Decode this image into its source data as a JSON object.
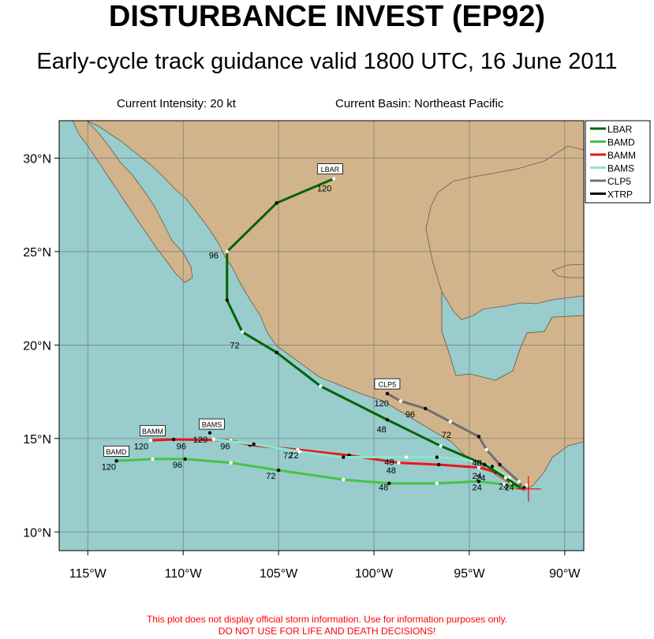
{
  "title": "DISTURBANCE INVEST (EP92)",
  "subtitle": "Early-cycle track guidance valid 1800 UTC, 16 June 2011",
  "intensity_label": "Current Intensity: 20 kt",
  "basin_label": "Current Basin: Northeast Pacific",
  "disclaimer_line1": "This plot does not display official storm information. Use for information purposes only.",
  "disclaimer_line2": "DO NOT USE FOR LIFE AND DEATH DECISIONS!",
  "colors": {
    "ocean": "#99cccc",
    "land": "#d2b48c",
    "LBAR": "#006400",
    "BAMD": "#44c444",
    "BAMM": "#e81818",
    "BAMS": "#88e8cc",
    "CLP5": "#707070",
    "XTRP": "#000000",
    "storm_marker": "#ff0000"
  },
  "map": {
    "lon_range": [
      -116.5,
      -89
    ],
    "lat_range": [
      9,
      32
    ],
    "lon_ticks": [
      {
        "value": -115,
        "label": "115°W"
      },
      {
        "value": -110,
        "label": "110°W"
      },
      {
        "value": -105,
        "label": "105°W"
      },
      {
        "value": -100,
        "label": "100°W"
      },
      {
        "value": -95,
        "label": "95°W"
      },
      {
        "value": -90,
        "label": "90°W"
      }
    ],
    "lat_ticks": [
      {
        "value": 10,
        "label": "10°N"
      },
      {
        "value": 15,
        "label": "15°N"
      },
      {
        "value": 20,
        "label": "20°N"
      },
      {
        "value": 25,
        "label": "25°N"
      },
      {
        "value": 30,
        "label": "30°N"
      }
    ],
    "storm_position": {
      "lon": -91.9,
      "lat": 12.3
    }
  },
  "legend": [
    "LBAR",
    "BAMD",
    "BAMM",
    "BAMS",
    "CLP5",
    "XTRP"
  ],
  "tracks": [
    {
      "name": "BAMD",
      "points": [
        [
          -92.2,
          12.3
        ],
        [
          -93.2,
          12.55
        ],
        [
          -94.5,
          12.7
        ],
        [
          -96.7,
          12.6
        ],
        [
          -99.2,
          12.6
        ],
        [
          -101.6,
          12.8
        ],
        [
          -105.0,
          13.3
        ],
        [
          -107.5,
          13.7
        ],
        [
          -109.9,
          13.9
        ],
        [
          -111.6,
          13.9
        ],
        [
          -113.5,
          13.8
        ]
      ],
      "hour_labels": [
        {
          "text": "24",
          "lon": -94.6,
          "lat": 12.4
        },
        {
          "text": "48",
          "lon": -99.5,
          "lat": 12.4
        },
        {
          "text": "72",
          "lon": -105.4,
          "lat": 13.0
        },
        {
          "text": "96",
          "lon": -110.3,
          "lat": 13.6
        },
        {
          "text": "120",
          "lon": -113.9,
          "lat": 13.5
        }
      ],
      "tag": {
        "text": "BAMD",
        "lon": -113.5,
        "lat": 14.3
      }
    },
    {
      "name": "BAMM",
      "points": [
        [
          -92.2,
          12.3
        ],
        [
          -92.8,
          12.65
        ],
        [
          -93.6,
          13.2
        ],
        [
          -94.5,
          13.45
        ],
        [
          -96.6,
          13.6
        ],
        [
          -98.7,
          13.7
        ],
        [
          -101.3,
          14.1
        ],
        [
          -104.0,
          14.4
        ],
        [
          -106.5,
          14.65
        ],
        [
          -107.5,
          14.9
        ],
        [
          -110.5,
          14.95
        ],
        [
          -111.7,
          14.9
        ]
      ],
      "hour_labels": [
        {
          "text": "24",
          "lon": -94.4,
          "lat": 12.9
        },
        {
          "text": "48",
          "lon": -99.1,
          "lat": 13.3
        },
        {
          "text": "72",
          "lon": -104.5,
          "lat": 14.1
        },
        {
          "text": "96",
          "lon": -110.1,
          "lat": 14.6
        },
        {
          "text": "120",
          "lon": -112.2,
          "lat": 14.6
        }
      ],
      "tag": {
        "text": "BAMM",
        "lon": -111.6,
        "lat": 15.4
      }
    },
    {
      "name": "BAMS",
      "points": [
        [
          -92.2,
          12.3
        ],
        [
          -92.9,
          12.9
        ],
        [
          -93.8,
          13.5
        ],
        [
          -94.9,
          13.85
        ],
        [
          -96.7,
          14.0
        ],
        [
          -98.3,
          14.0
        ],
        [
          -101.6,
          14.0
        ],
        [
          -103.9,
          14.3
        ],
        [
          -106.3,
          14.7
        ],
        [
          -108.4,
          14.95
        ],
        [
          -108.6,
          15.3
        ]
      ],
      "hour_labels": [
        {
          "text": "24",
          "lon": -93.2,
          "lat": 12.45
        },
        {
          "text": "48",
          "lon": -99.2,
          "lat": 13.75
        },
        {
          "text": "72",
          "lon": -104.2,
          "lat": 14.1
        },
        {
          "text": "96",
          "lon": -107.8,
          "lat": 14.6
        },
        {
          "text": "120",
          "lon": -109.1,
          "lat": 14.95
        }
      ],
      "tag": {
        "text": "BAMS",
        "lon": -108.5,
        "lat": 15.75
      }
    },
    {
      "name": "LBAR",
      "points": [
        [
          -92.2,
          12.3
        ],
        [
          -93.1,
          12.9
        ],
        [
          -94.2,
          13.6
        ],
        [
          -96.5,
          14.6
        ],
        [
          -99.3,
          16.0
        ],
        [
          -102.8,
          17.8
        ],
        [
          -105.1,
          19.6
        ],
        [
          -106.9,
          20.7
        ],
        [
          -107.7,
          22.4
        ],
        [
          -107.7,
          25.0
        ],
        [
          -105.1,
          27.6
        ],
        [
          -102.1,
          28.9
        ]
      ],
      "hour_labels": [
        {
          "text": "24",
          "lon": -94.6,
          "lat": 13.0
        },
        {
          "text": "48",
          "lon": -99.6,
          "lat": 15.5
        },
        {
          "text": "72",
          "lon": -107.3,
          "lat": 20.0
        },
        {
          "text": "96",
          "lon": -108.4,
          "lat": 24.8
        },
        {
          "text": "120",
          "lon": -102.6,
          "lat": 28.4
        }
      ],
      "tag": {
        "text": "LBAR",
        "lon": -102.3,
        "lat": 29.4
      }
    },
    {
      "name": "CLP5",
      "points": [
        [
          -92.2,
          12.3
        ],
        [
          -92.4,
          12.7
        ],
        [
          -93.4,
          13.6
        ],
        [
          -94.1,
          14.4
        ],
        [
          -94.5,
          15.1
        ],
        [
          -96.0,
          15.9
        ],
        [
          -97.3,
          16.6
        ],
        [
          -98.6,
          17.0
        ],
        [
          -99.3,
          17.4
        ]
      ],
      "hour_labels": [
        {
          "text": "24",
          "lon": -92.9,
          "lat": 12.4
        },
        {
          "text": "48",
          "lon": -94.6,
          "lat": 13.7
        },
        {
          "text": "72",
          "lon": -96.2,
          "lat": 15.2
        },
        {
          "text": "96",
          "lon": -98.1,
          "lat": 16.3
        },
        {
          "text": "120",
          "lon": -99.6,
          "lat": 16.9
        }
      ],
      "tag": {
        "text": "CLP5",
        "lon": -99.3,
        "lat": 17.9
      }
    },
    {
      "name": "XTRP",
      "points": [
        [
          -92.2,
          12.3
        ],
        [
          -92.0,
          12.5
        ]
      ],
      "hour_labels": [],
      "tag": null
    }
  ]
}
